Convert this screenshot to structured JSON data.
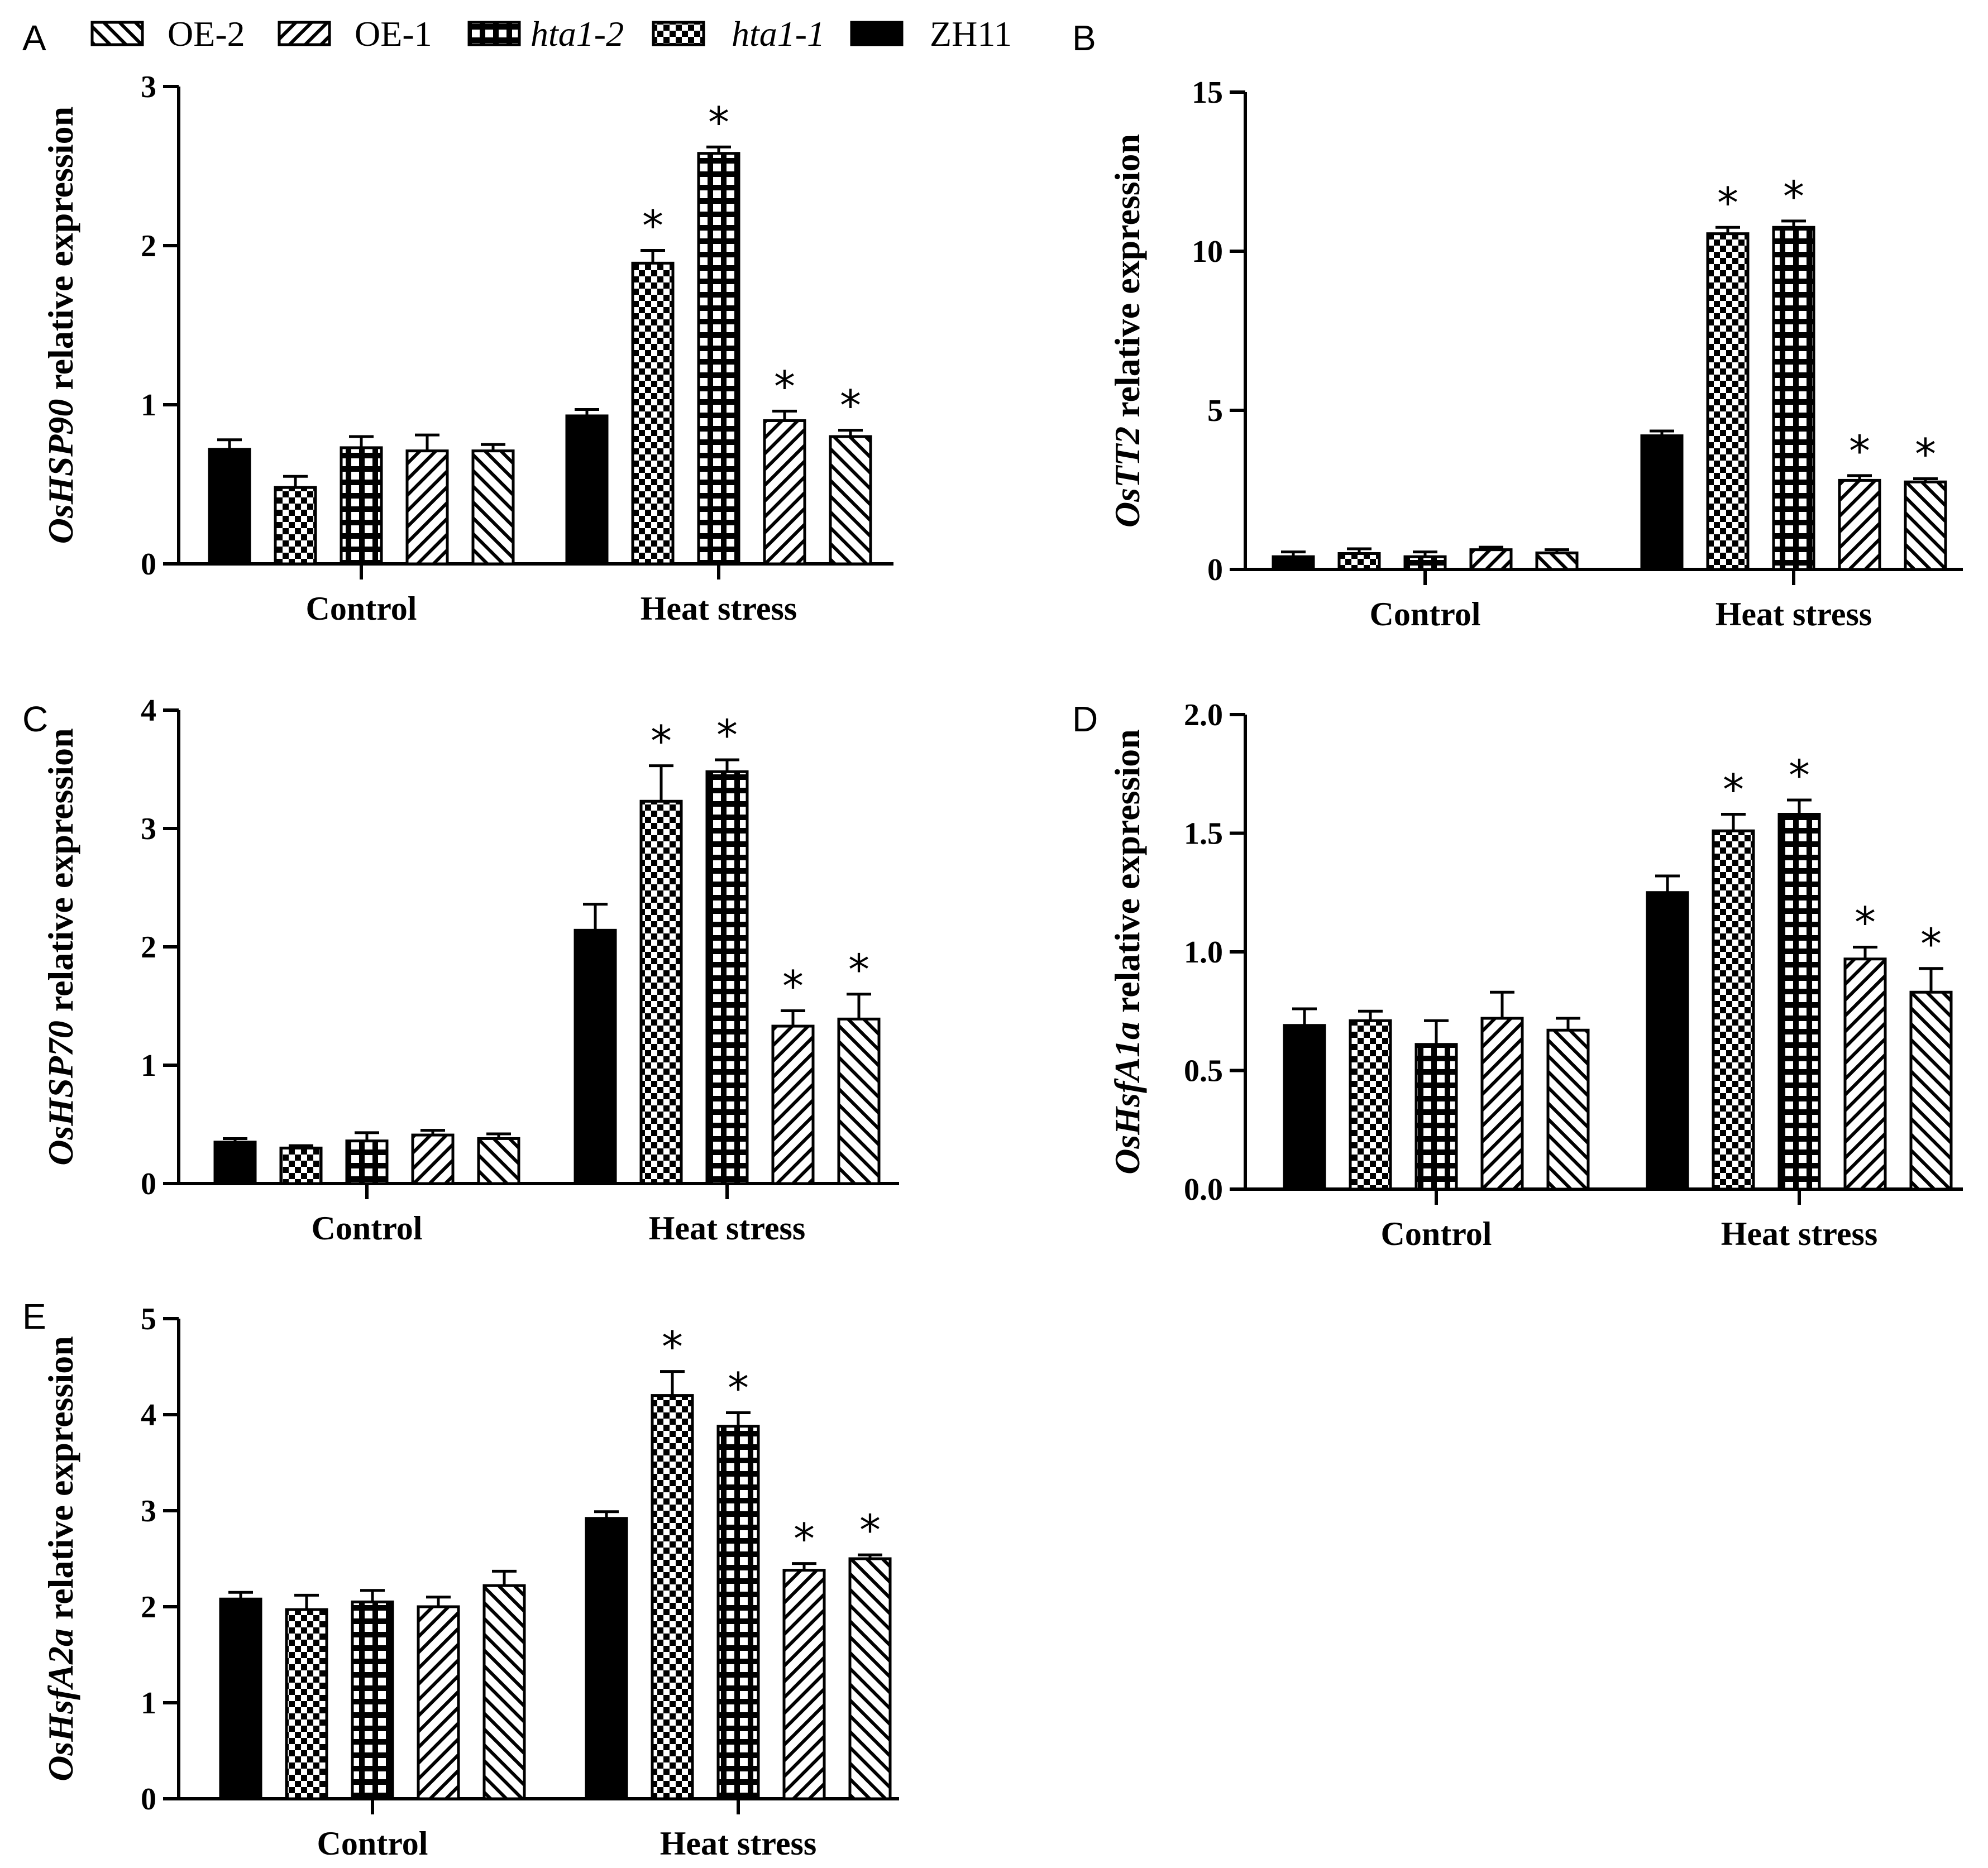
{
  "figure": {
    "legend": [
      {
        "label": "OE-2",
        "pattern": "diag-back",
        "italic": false
      },
      {
        "label": "OE-1",
        "pattern": "diag-fwd",
        "italic": false
      },
      {
        "label": "hta1-2",
        "pattern": "grid",
        "italic": true
      },
      {
        "label": "hta1-1",
        "pattern": "checker",
        "italic": true
      },
      {
        "label": "ZH11",
        "pattern": "solid",
        "italic": false
      }
    ],
    "colors": {
      "ink": "#000000",
      "background": "#ffffff"
    }
  },
  "chart_data": [
    {
      "panel": "A",
      "type": "bar",
      "ylabel_gene": "OsHSP90",
      "ylabel_rest": " relative expression",
      "categories": [
        "Control",
        "Heat stress"
      ],
      "ylim": [
        0,
        3
      ],
      "yticks": [
        "0",
        "1",
        "2",
        "3"
      ],
      "series": [
        {
          "name": "ZH11",
          "values": [
            0.72,
            0.93
          ],
          "errors": [
            0.06,
            0.04
          ],
          "sig": [
            false,
            false
          ]
        },
        {
          "name": "hta1-1",
          "values": [
            0.48,
            1.89
          ],
          "errors": [
            0.07,
            0.08
          ],
          "sig": [
            false,
            true
          ]
        },
        {
          "name": "hta1-2",
          "values": [
            0.73,
            2.58
          ],
          "errors": [
            0.07,
            0.04
          ],
          "sig": [
            false,
            true
          ]
        },
        {
          "name": "OE-1",
          "values": [
            0.71,
            0.9
          ],
          "errors": [
            0.1,
            0.06
          ],
          "sig": [
            false,
            true
          ]
        },
        {
          "name": "OE-2",
          "values": [
            0.71,
            0.8
          ],
          "errors": [
            0.04,
            0.04
          ],
          "sig": [
            false,
            true
          ]
        }
      ]
    },
    {
      "panel": "B",
      "type": "bar",
      "ylabel_gene": "OsTT2",
      "ylabel_rest": " relative expression",
      "categories": [
        "Control",
        "Heat stress"
      ],
      "ylim": [
        0,
        15
      ],
      "yticks": [
        "0",
        "5",
        "10",
        "15"
      ],
      "series": [
        {
          "name": "ZH11",
          "values": [
            0.4,
            4.2
          ],
          "errors": [
            0.15,
            0.15
          ],
          "sig": [
            false,
            false
          ]
        },
        {
          "name": "hta1-1",
          "values": [
            0.5,
            10.55
          ],
          "errors": [
            0.15,
            0.2
          ],
          "sig": [
            false,
            true
          ]
        },
        {
          "name": "hta1-2",
          "values": [
            0.4,
            10.75
          ],
          "errors": [
            0.15,
            0.2
          ],
          "sig": [
            false,
            true
          ]
        },
        {
          "name": "OE-1",
          "values": [
            0.62,
            2.8
          ],
          "errors": [
            0.08,
            0.15
          ],
          "sig": [
            false,
            true
          ]
        },
        {
          "name": "OE-2",
          "values": [
            0.52,
            2.75
          ],
          "errors": [
            0.1,
            0.1
          ],
          "sig": [
            false,
            true
          ]
        }
      ]
    },
    {
      "panel": "C",
      "type": "bar",
      "ylabel_gene": "OsHSP70",
      "ylabel_rest": " relative expression",
      "categories": [
        "Control",
        "Heat stress"
      ],
      "ylim": [
        0,
        4
      ],
      "yticks": [
        "0",
        "1",
        "2",
        "3",
        "4"
      ],
      "series": [
        {
          "name": "ZH11",
          "values": [
            0.35,
            2.14
          ],
          "errors": [
            0.03,
            0.22
          ],
          "sig": [
            false,
            false
          ]
        },
        {
          "name": "hta1-1",
          "values": [
            0.3,
            3.23
          ],
          "errors": [
            0.02,
            0.3
          ],
          "sig": [
            false,
            true
          ]
        },
        {
          "name": "hta1-2",
          "values": [
            0.36,
            3.48
          ],
          "errors": [
            0.07,
            0.1
          ],
          "sig": [
            false,
            true
          ]
        },
        {
          "name": "OE-1",
          "values": [
            0.41,
            1.33
          ],
          "errors": [
            0.04,
            0.13
          ],
          "sig": [
            false,
            true
          ]
        },
        {
          "name": "OE-2",
          "values": [
            0.38,
            1.39
          ],
          "errors": [
            0.04,
            0.21
          ],
          "sig": [
            false,
            true
          ]
        }
      ]
    },
    {
      "panel": "D",
      "type": "bar",
      "ylabel_gene": "OsHsfA1a",
      "ylabel_rest": " relative expression",
      "categories": [
        "Control",
        "Heat stress"
      ],
      "ylim": [
        0,
        2
      ],
      "yticks": [
        "0.0",
        "0.5",
        "1.0",
        "1.5",
        "2.0"
      ],
      "series": [
        {
          "name": "ZH11",
          "values": [
            0.69,
            1.25
          ],
          "errors": [
            0.07,
            0.07
          ],
          "sig": [
            false,
            false
          ]
        },
        {
          "name": "hta1-1",
          "values": [
            0.71,
            1.51
          ],
          "errors": [
            0.04,
            0.07
          ],
          "sig": [
            false,
            true
          ]
        },
        {
          "name": "hta1-2",
          "values": [
            0.61,
            1.58
          ],
          "errors": [
            0.1,
            0.06
          ],
          "sig": [
            false,
            true
          ]
        },
        {
          "name": "OE-1",
          "values": [
            0.72,
            0.97
          ],
          "errors": [
            0.11,
            0.05
          ],
          "sig": [
            false,
            true
          ]
        },
        {
          "name": "OE-2",
          "values": [
            0.67,
            0.83
          ],
          "errors": [
            0.05,
            0.1
          ],
          "sig": [
            false,
            true
          ]
        }
      ]
    },
    {
      "panel": "E",
      "type": "bar",
      "ylabel_gene": "OsHsfA2a",
      "ylabel_rest": " relative expression",
      "categories": [
        "Control",
        "Heat stress"
      ],
      "ylim": [
        0,
        5
      ],
      "yticks": [
        "0",
        "1",
        "2",
        "3",
        "4",
        "5"
      ],
      "series": [
        {
          "name": "ZH11",
          "values": [
            2.08,
            2.92
          ],
          "errors": [
            0.07,
            0.07
          ],
          "sig": [
            false,
            false
          ]
        },
        {
          "name": "hta1-1",
          "values": [
            1.97,
            4.2
          ],
          "errors": [
            0.15,
            0.25
          ],
          "sig": [
            false,
            true
          ]
        },
        {
          "name": "hta1-2",
          "values": [
            2.05,
            3.88
          ],
          "errors": [
            0.12,
            0.14
          ],
          "sig": [
            false,
            true
          ]
        },
        {
          "name": "OE-1",
          "values": [
            2.0,
            2.38
          ],
          "errors": [
            0.1,
            0.07
          ],
          "sig": [
            false,
            true
          ]
        },
        {
          "name": "OE-2",
          "values": [
            2.22,
            2.5
          ],
          "errors": [
            0.15,
            0.04
          ],
          "sig": [
            false,
            true
          ]
        }
      ]
    }
  ]
}
